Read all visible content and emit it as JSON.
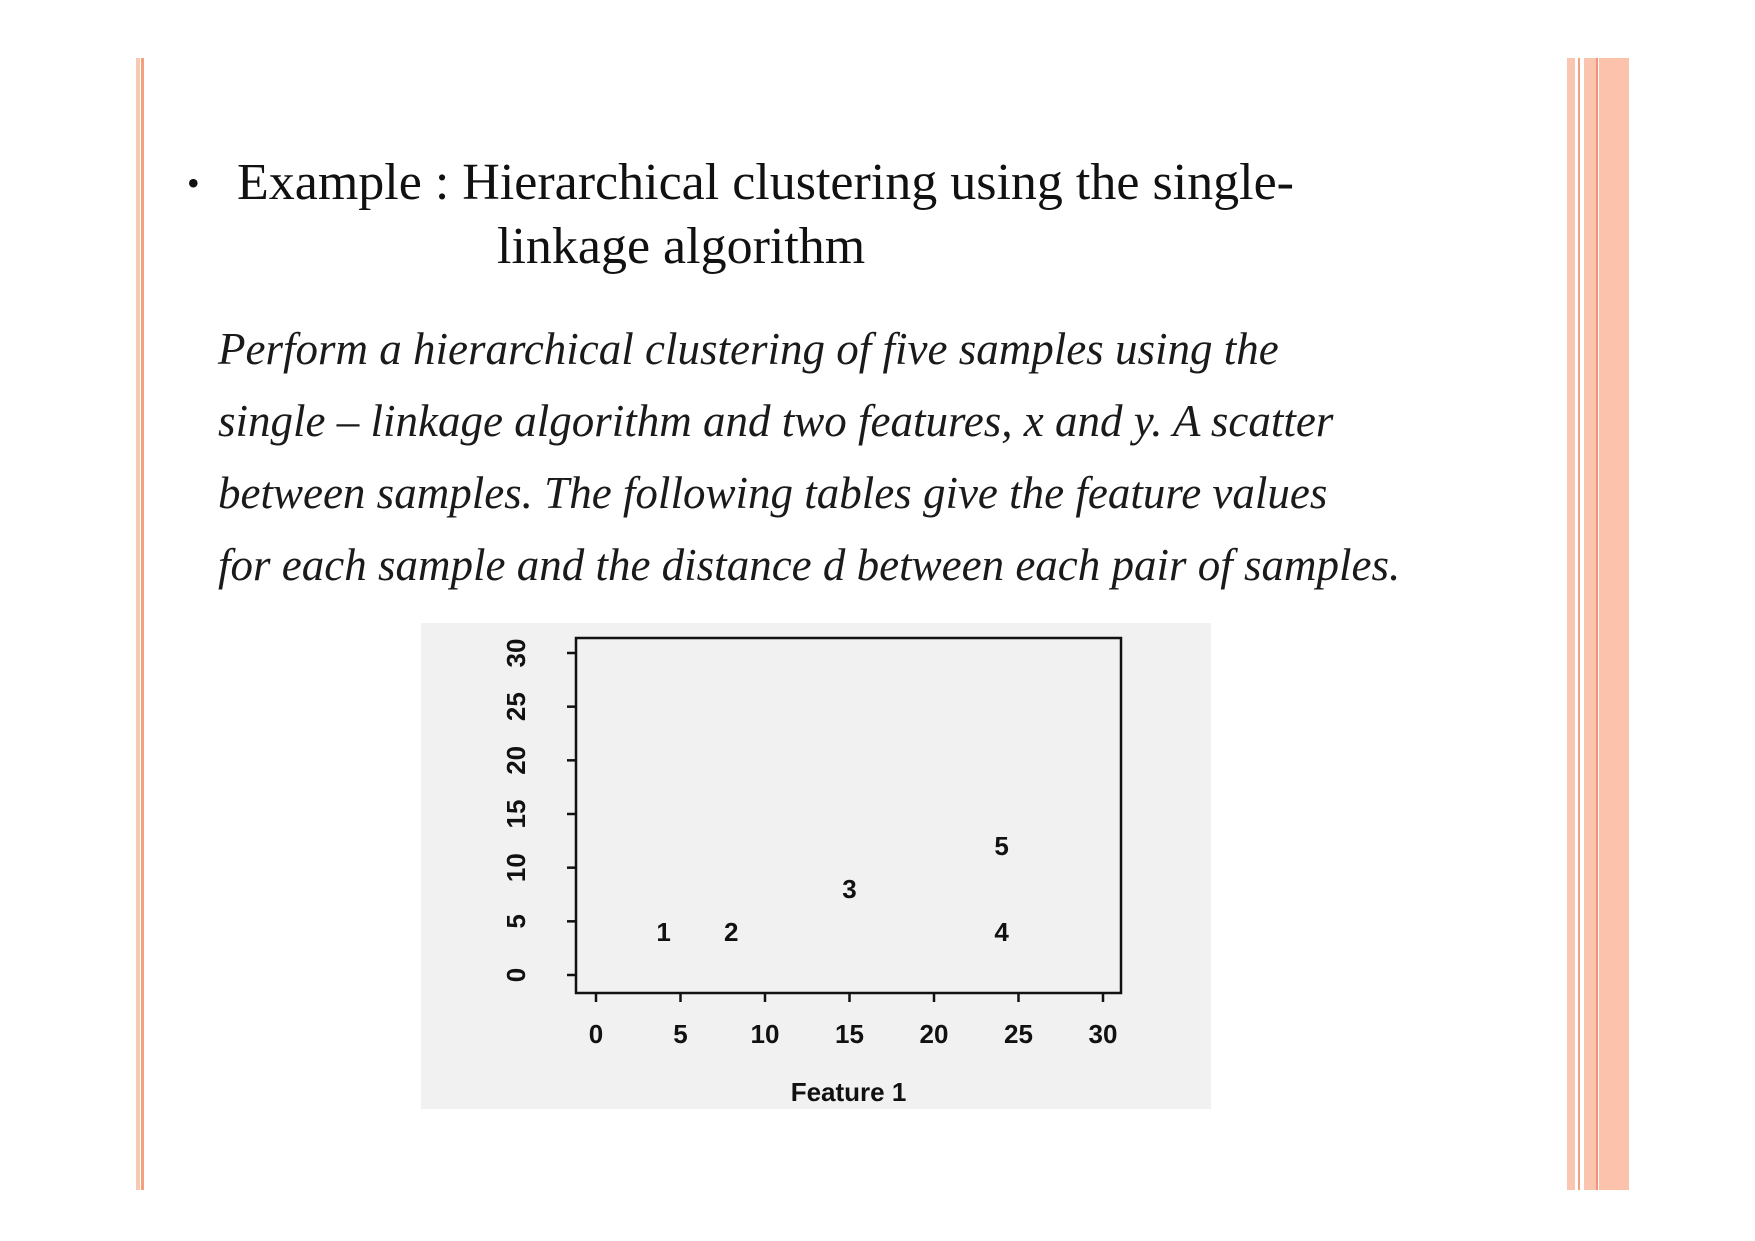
{
  "heading": {
    "bullet": "•",
    "line1": "Example : Hierarchical clustering using the single-",
    "line2": "linkage algorithm"
  },
  "problem": {
    "lines": [
      "Perform a hierarchical clustering of  five samples using the",
      "single – linkage algorithm and two  features, x and  y. A scatter",
      "between samples. The  following tables  give the  feature values",
      "for each sample and the distance d between each  pair of  samples."
    ]
  },
  "colors": {
    "accent_stripe": "#f4a07f",
    "accent_stripe_light": "#fbc4ae"
  },
  "chart_data": {
    "type": "scatter",
    "xlabel": "Feature 1",
    "ylabel": "",
    "xlim": [
      0,
      30
    ],
    "ylim": [
      0,
      30
    ],
    "x_ticks": [
      "0",
      "5",
      "10",
      "15",
      "20",
      "25",
      "30"
    ],
    "y_ticks": [
      "0",
      "5",
      "10",
      "15",
      "20",
      "25",
      "30"
    ],
    "points": [
      {
        "label": "1",
        "x": 4,
        "y": 4
      },
      {
        "label": "2",
        "x": 8,
        "y": 4
      },
      {
        "label": "3",
        "x": 15,
        "y": 8
      },
      {
        "label": "4",
        "x": 24,
        "y": 4
      },
      {
        "label": "5",
        "x": 24,
        "y": 12
      }
    ]
  }
}
